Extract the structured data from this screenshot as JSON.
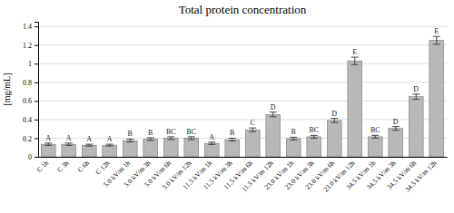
{
  "chart_data": {
    "type": "bar",
    "title": "Total protein concentration",
    "ylabel": "[mg/mL]",
    "categories": [
      "C 1h",
      "C 3h",
      "C 6h",
      "C 12h",
      "5.0 kV/m 1h",
      "5.0 kV/m 3h",
      "5.0 kV/m 6h",
      "5.0 kV/m 12h",
      "11.5 kV/m 1h",
      "11.5 kV/m 3h",
      "11.5 kV/m 6h",
      "11.5 kV/m 12h",
      "23.0 kV/m 1h",
      "23.0 kV/m 3h",
      "23.0 kV/m 6h",
      "23.0 kV/m 12h",
      "34.5 kV/m 1h",
      "34.5 kV/m 3h",
      "34.5 kV/m 6h",
      "34.5 kV/m 12h"
    ],
    "values": [
      0.135,
      0.135,
      0.125,
      0.125,
      0.175,
      0.19,
      0.2,
      0.2,
      0.145,
      0.185,
      0.29,
      0.455,
      0.195,
      0.215,
      0.39,
      1.03,
      0.215,
      0.305,
      0.645,
      1.25
    ],
    "errors": [
      0.012,
      0.012,
      0.01,
      0.01,
      0.015,
      0.015,
      0.015,
      0.015,
      0.012,
      0.015,
      0.02,
      0.025,
      0.015,
      0.015,
      0.022,
      0.04,
      0.015,
      0.02,
      0.028,
      0.042
    ],
    "annotations": [
      "A",
      "A",
      "A",
      "A",
      "B",
      "B",
      "BC",
      "BC",
      "A",
      "B",
      "C",
      "D",
      "B",
      "BC",
      "D",
      "E",
      "BC",
      "D",
      "D",
      "E"
    ],
    "color": "#b8b8b8",
    "ylim": [
      0,
      1.45
    ],
    "yticks": [
      0,
      0.2,
      0.4,
      0.6,
      0.8,
      1,
      1.2,
      1.4
    ],
    "grid": true
  }
}
